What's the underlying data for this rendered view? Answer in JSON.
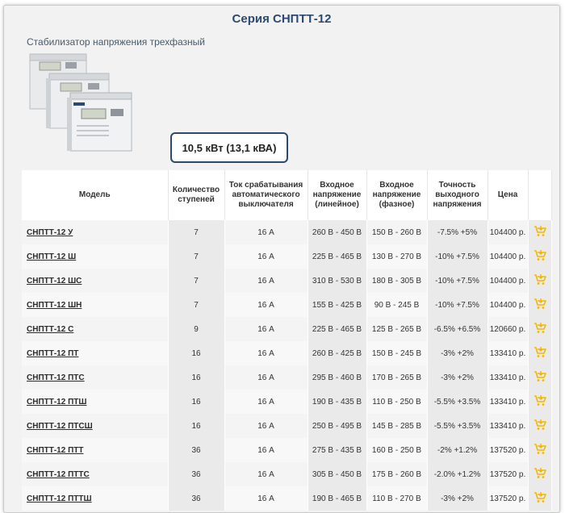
{
  "header": {
    "title": "Серия СНПТТ-12",
    "subtitle": "Стабилизатор напряжения трехфазный",
    "power": "10,5 кВт (13,1 кВА)"
  },
  "table": {
    "columns": {
      "model": "Модель",
      "steps": "Количество ступеней",
      "current": "Ток срабатывания автоматического выключателя",
      "input_line": "Входное напряжение (линейное)",
      "input_phase": "Входное напряжение (фазное)",
      "accuracy": "Точность выходного напряжения",
      "price": "Цена"
    },
    "rows": [
      {
        "model": "СНПТТ-12 У",
        "steps": "7",
        "current": "16 А",
        "input_line": "260 В - 450 В",
        "input_phase": "150 В - 260 В",
        "accuracy": "-7.5% +5%",
        "price": "104400 р."
      },
      {
        "model": "СНПТТ-12 Ш",
        "steps": "7",
        "current": "16 А",
        "input_line": "225 В - 465 В",
        "input_phase": "130 В - 270 В",
        "accuracy": "-10% +7.5%",
        "price": "104400 р."
      },
      {
        "model": "СНПТТ-12 ШС",
        "steps": "7",
        "current": "16 А",
        "input_line": "310 В - 530 В",
        "input_phase": "180 В - 305 В",
        "accuracy": "-10% +7.5%",
        "price": "104400 р."
      },
      {
        "model": "СНПТТ-12 ШН",
        "steps": "7",
        "current": "16 А",
        "input_line": "155 В - 425 В",
        "input_phase": "90 В - 245 В",
        "accuracy": "-10% +7.5%",
        "price": "104400 р."
      },
      {
        "model": "СНПТТ-12 С",
        "steps": "9",
        "current": "16 А",
        "input_line": "225 В - 465 В",
        "input_phase": "125 В - 265 В",
        "accuracy": "-6.5% +6.5%",
        "price": "120660 р."
      },
      {
        "model": "СНПТТ-12 ПТ",
        "steps": "16",
        "current": "16 А",
        "input_line": "260 В - 425 В",
        "input_phase": "150 В - 245 В",
        "accuracy": "-3% +2%",
        "price": "133410 р."
      },
      {
        "model": "СНПТТ-12 ПТС",
        "steps": "16",
        "current": "16 А",
        "input_line": "295 В - 460 В",
        "input_phase": "170 В - 265 В",
        "accuracy": "-3% +2%",
        "price": "133410 р."
      },
      {
        "model": "СНПТТ-12 ПТШ",
        "steps": "16",
        "current": "16 А",
        "input_line": "190 В - 435 В",
        "input_phase": "110 В - 250 В",
        "accuracy": "-5.5% +3.5%",
        "price": "133410 р."
      },
      {
        "model": "СНПТТ-12 ПТСШ",
        "steps": "16",
        "current": "16 А",
        "input_line": "250 В - 495 В",
        "input_phase": "145 В - 285 В",
        "accuracy": "-5.5% +3.5%",
        "price": "133410 р."
      },
      {
        "model": "СНПТТ-12 ПТТ",
        "steps": "36",
        "current": "16 А",
        "input_line": "275 В - 435 В",
        "input_phase": "160 В - 250 В",
        "accuracy": "-2% +1.2%",
        "price": "137520 р."
      },
      {
        "model": "СНПТТ-12 ПТТС",
        "steps": "36",
        "current": "16 А",
        "input_line": "305 В - 450 В",
        "input_phase": "175 В - 260 В",
        "accuracy": "-2.0% +1.2%",
        "price": "137520 р."
      },
      {
        "model": "СНПТТ-12 ПТТШ",
        "steps": "36",
        "current": "16 А",
        "input_line": "190 В - 465 В",
        "input_phase": "110 В - 270 В",
        "accuracy": "-3% +2%",
        "price": "137520 р."
      }
    ]
  },
  "icons": {
    "cart": "shopping-cart-icon",
    "product": "stabilizer-image"
  },
  "colors": {
    "title": "#2b4a6e",
    "cart": "#f2b705",
    "border": "#2b4a6e"
  }
}
